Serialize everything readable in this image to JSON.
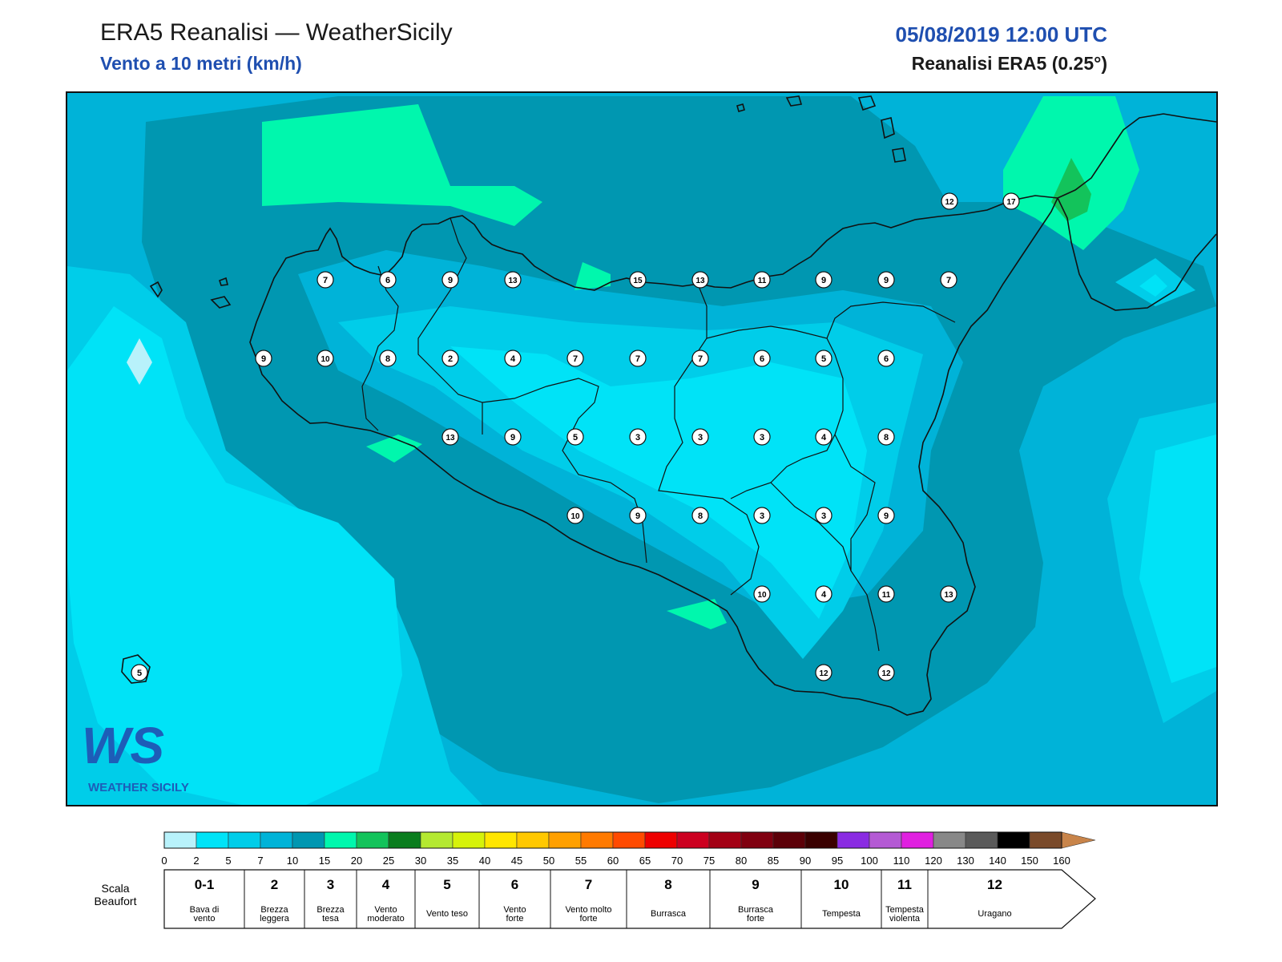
{
  "header": {
    "title": "ERA5 Reanalisi — WeatherSicily",
    "subtitle": "Vento a 10 metri (km/h)",
    "datetime": "05/08/2019 12:00 UTC",
    "model": "Reanalisi ERA5 (0.25°)"
  },
  "logo": {
    "text": "WEATHER SICILY",
    "mark": "WS"
  },
  "colors": {
    "fill_0_2": "#b8f2fb",
    "fill_2_5": "#00e3f7",
    "fill_5_7": "#00cde9",
    "fill_7_10": "#00b3d8",
    "fill_10_15": "#0097b1",
    "fill_15_20": "#00f7ad",
    "fill_20_25": "#13c35b",
    "coast": "#111111"
  },
  "colorbar": {
    "ticks": [
      "0",
      "2",
      "5",
      "7",
      "10",
      "15",
      "20",
      "25",
      "30",
      "35",
      "40",
      "45",
      "50",
      "55",
      "60",
      "65",
      "70",
      "75",
      "80",
      "85",
      "90",
      "95",
      "100",
      "110",
      "120",
      "130",
      "140",
      "150",
      "160"
    ],
    "colors": [
      "#b8f2fb",
      "#00e3f7",
      "#00cde9",
      "#00b3d8",
      "#0097b1",
      "#00f7ad",
      "#13c35b",
      "#0a7d1e",
      "#b4e931",
      "#d6f20a",
      "#ffe600",
      "#ffc800",
      "#ffa000",
      "#ff7a00",
      "#ff4a00",
      "#ee0000",
      "#cc0020",
      "#a30014",
      "#800010",
      "#5c0008",
      "#3a0000",
      "#8a2be2",
      "#b45ad4",
      "#e020e0",
      "#888888",
      "#5a5a5a",
      "#000000",
      "#7a4a2a",
      "#c8844a"
    ]
  },
  "beaufort": {
    "label_line1": "Scala",
    "label_line2": "Beaufort",
    "classes": [
      {
        "num": "0-1",
        "line1": "Bava di",
        "line2": "vento"
      },
      {
        "num": "2",
        "line1": "Brezza",
        "line2": "leggera"
      },
      {
        "num": "3",
        "line1": "Brezza",
        "line2": "tesa"
      },
      {
        "num": "4",
        "line1": "Vento",
        "line2": "moderato"
      },
      {
        "num": "5",
        "line1": "Vento teso",
        "line2": ""
      },
      {
        "num": "6",
        "line1": "Vento",
        "line2": "forte"
      },
      {
        "num": "7",
        "line1": "Vento molto",
        "line2": "forte"
      },
      {
        "num": "8",
        "line1": "Burrasca",
        "line2": ""
      },
      {
        "num": "9",
        "line1": "Burrasca",
        "line2": "forte"
      },
      {
        "num": "10",
        "line1": "Tempesta",
        "line2": ""
      },
      {
        "num": "11",
        "line1": "Tempesta",
        "line2": "violenta"
      },
      {
        "num": "12",
        "line1": "Uragano",
        "line2": ""
      }
    ]
  },
  "stations": [
    "12",
    "17",
    "7",
    "6",
    "9",
    "13",
    "15",
    "13",
    "11",
    "9",
    "9",
    "7",
    "9",
    "10",
    "8",
    "2",
    "4",
    "7",
    "7",
    "7",
    "6",
    "5",
    "6",
    "13",
    "9",
    "5",
    "3",
    "3",
    "3",
    "4",
    "8",
    "10",
    "9",
    "8",
    "3",
    "3",
    "9",
    "10",
    "4",
    "11",
    "13",
    "12",
    "12",
    "5"
  ]
}
